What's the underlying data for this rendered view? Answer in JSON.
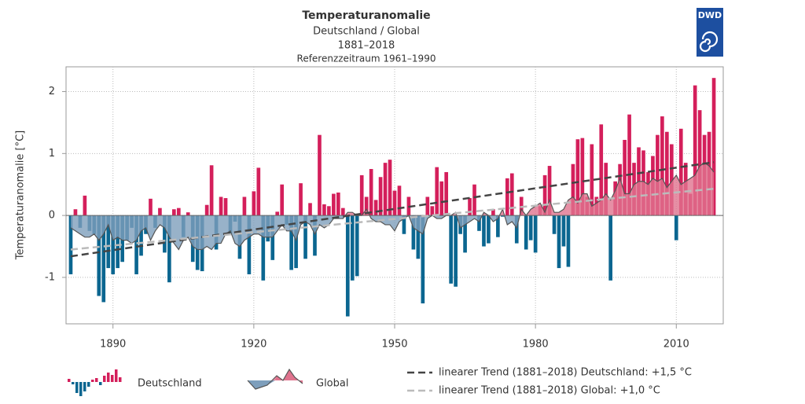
{
  "chart_data": {
    "type": "bar",
    "title": "Temperaturanomalie",
    "subtitle": [
      "Deutschland / Global",
      "1881–2018"
    ],
    "note": "Referenzzeitraum 1961–1990",
    "logo": "DWD",
    "ylabel": "Temperaturanomalie [°C]",
    "xlim": [
      1880,
      2020
    ],
    "ylim": [
      -1.75,
      2.4
    ],
    "xticks": [
      1890,
      1920,
      1950,
      1980,
      2010
    ],
    "yticks": [
      -1,
      0,
      1,
      2
    ],
    "grid": true,
    "x": [
      1881,
      1882,
      1883,
      1884,
      1885,
      1886,
      1887,
      1888,
      1889,
      1890,
      1891,
      1892,
      1893,
      1894,
      1895,
      1896,
      1897,
      1898,
      1899,
      1900,
      1901,
      1902,
      1903,
      1904,
      1905,
      1906,
      1907,
      1908,
      1909,
      1910,
      1911,
      1912,
      1913,
      1914,
      1915,
      1916,
      1917,
      1918,
      1919,
      1920,
      1921,
      1922,
      1923,
      1924,
      1925,
      1926,
      1927,
      1928,
      1929,
      1930,
      1931,
      1932,
      1933,
      1934,
      1935,
      1936,
      1937,
      1938,
      1939,
      1940,
      1941,
      1942,
      1943,
      1944,
      1945,
      1946,
      1947,
      1948,
      1949,
      1950,
      1951,
      1952,
      1953,
      1954,
      1955,
      1956,
      1957,
      1958,
      1959,
      1960,
      1961,
      1962,
      1963,
      1964,
      1965,
      1966,
      1967,
      1968,
      1969,
      1970,
      1971,
      1972,
      1973,
      1974,
      1975,
      1976,
      1977,
      1978,
      1979,
      1980,
      1981,
      1982,
      1983,
      1984,
      1985,
      1986,
      1987,
      1988,
      1989,
      1990,
      1991,
      1992,
      1993,
      1994,
      1995,
      1996,
      1997,
      1998,
      1999,
      2000,
      2001,
      2002,
      2003,
      2004,
      2005,
      2006,
      2007,
      2008,
      2009,
      2010,
      2011,
      2012,
      2013,
      2014,
      2015,
      2016,
      2017,
      2018
    ],
    "series": [
      {
        "name": "Deutschland",
        "color": "#d41f5b",
        "negative_color": "#0b6690",
        "values": [
          -0.95,
          0.1,
          -0.2,
          0.32,
          -0.25,
          -0.3,
          -1.3,
          -1.4,
          -0.85,
          -0.95,
          -0.85,
          -0.75,
          -0.4,
          -0.2,
          -0.95,
          -0.65,
          -0.3,
          0.27,
          -0.2,
          0.12,
          -0.6,
          -1.08,
          0.1,
          0.12,
          -0.35,
          0.05,
          -0.75,
          -0.88,
          -0.9,
          0.17,
          0.81,
          -0.55,
          0.3,
          0.28,
          -0.3,
          -0.1,
          -0.7,
          0.3,
          -0.95,
          0.39,
          0.77,
          -1.05,
          -0.42,
          -0.72,
          0.06,
          0.5,
          -0.15,
          -0.88,
          -0.85,
          0.52,
          -0.7,
          0.2,
          -0.65,
          1.3,
          0.18,
          0.15,
          0.35,
          0.37,
          0.12,
          -1.63,
          -1.05,
          -0.98,
          0.65,
          0.3,
          0.75,
          0.25,
          0.62,
          0.85,
          0.9,
          0.4,
          0.48,
          -0.3,
          0.3,
          -0.55,
          -0.7,
          -1.42,
          0.3,
          0.15,
          0.78,
          0.55,
          0.7,
          -1.1,
          -1.15,
          -0.3,
          -0.6,
          0.28,
          0.5,
          -0.25,
          -0.5,
          -0.45,
          0.1,
          -0.35,
          -0.02,
          0.6,
          0.68,
          -0.45,
          0.3,
          -0.55,
          -0.4,
          -0.6,
          0.15,
          0.65,
          0.8,
          -0.3,
          -0.85,
          -0.5,
          -0.83,
          0.83,
          1.23,
          1.25,
          0.3,
          1.15,
          0.3,
          1.47,
          0.85,
          -1.05,
          0.55,
          0.83,
          1.22,
          1.63,
          0.85,
          1.1,
          1.05,
          0.7,
          0.96,
          1.3,
          1.6,
          1.35,
          1.15,
          -0.4,
          1.4,
          0.85,
          0.35,
          2.1,
          1.7,
          1.3,
          1.35,
          2.22
        ]
      },
      {
        "name": "Global",
        "color": "#e0738e",
        "negative_color": "#7e9fbc",
        "line_color": "#555555",
        "values": [
          -0.2,
          -0.25,
          -0.3,
          -0.35,
          -0.35,
          -0.3,
          -0.4,
          -0.3,
          -0.15,
          -0.4,
          -0.35,
          -0.4,
          -0.4,
          -0.45,
          -0.4,
          -0.25,
          -0.2,
          -0.4,
          -0.25,
          -0.15,
          -0.2,
          -0.35,
          -0.45,
          -0.55,
          -0.4,
          -0.35,
          -0.5,
          -0.55,
          -0.55,
          -0.5,
          -0.55,
          -0.45,
          -0.45,
          -0.3,
          -0.25,
          -0.45,
          -0.5,
          -0.4,
          -0.35,
          -0.3,
          -0.3,
          -0.35,
          -0.35,
          -0.35,
          -0.25,
          -0.15,
          -0.25,
          -0.25,
          -0.4,
          -0.15,
          -0.1,
          -0.15,
          -0.3,
          -0.15,
          -0.2,
          -0.15,
          -0.05,
          -0.05,
          -0.05,
          0.05,
          0.05,
          0.0,
          0.0,
          0.1,
          -0.05,
          -0.1,
          -0.1,
          -0.15,
          -0.15,
          -0.25,
          -0.1,
          -0.05,
          0.0,
          -0.2,
          -0.25,
          -0.3,
          -0.05,
          0.0,
          -0.05,
          -0.05,
          0.0,
          0.0,
          0.05,
          -0.2,
          -0.15,
          -0.1,
          -0.05,
          -0.1,
          0.05,
          0.0,
          -0.1,
          -0.05,
          0.1,
          -0.15,
          -0.1,
          -0.2,
          0.1,
          0.0,
          0.1,
          0.15,
          0.2,
          0.05,
          0.25,
          0.05,
          0.05,
          0.1,
          0.25,
          0.3,
          0.2,
          0.35,
          0.35,
          0.15,
          0.2,
          0.25,
          0.35,
          0.25,
          0.4,
          0.6,
          0.35,
          0.35,
          0.5,
          0.55,
          0.55,
          0.5,
          0.6,
          0.55,
          0.6,
          0.45,
          0.55,
          0.65,
          0.5,
          0.55,
          0.6,
          0.65,
          0.8,
          0.85,
          0.8,
          0.7
        ]
      }
    ],
    "trends": [
      {
        "name": "linearer Trend (1881–2018) Deutschland: +1,5 °C",
        "color": "#444444",
        "x": [
          1881,
          2018
        ],
        "values": [
          -0.66,
          0.86
        ]
      },
      {
        "name": "linearer Trend (1881–2018) Global: +1,0 °C",
        "color": "#bbbbbb",
        "x": [
          1881,
          2018
        ],
        "values": [
          -0.55,
          0.43
        ]
      }
    ]
  }
}
